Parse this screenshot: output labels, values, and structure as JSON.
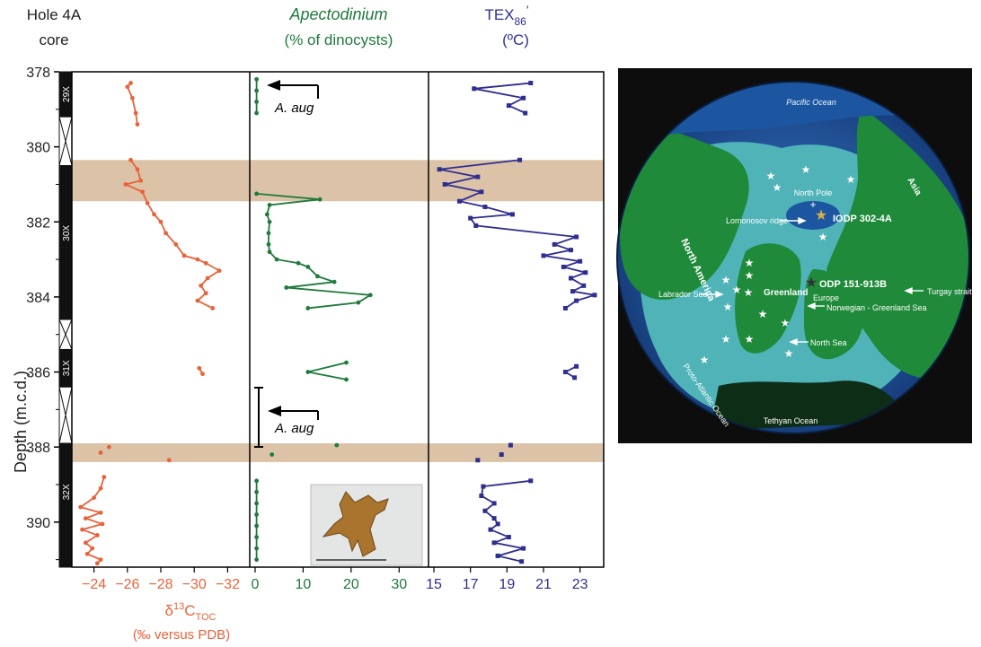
{
  "core_column": {
    "title_line1": "Hole 4A",
    "title_line2": "core",
    "sections": [
      "29X",
      "30X",
      "31X",
      "32X"
    ]
  },
  "depth_axis": {
    "label": "Depth (m.c.d.)",
    "ticks": [
      "378",
      "380",
      "382",
      "384",
      "386",
      "388",
      "390"
    ],
    "range": [
      378,
      391.2
    ],
    "inverted": true
  },
  "shaded_intervals": [
    [
      380.35,
      381.45
    ],
    [
      387.9,
      388.4
    ]
  ],
  "colors": {
    "d13c": "#e8623a",
    "apecto": "#1f7a3c",
    "tex": "#2e2e8f",
    "band": "#dcc3a8",
    "map_land": "#1f8a3a",
    "map_shelf": "#4fb3b8",
    "map_ocean": "#1c56a0"
  },
  "chart_data": [
    {
      "type": "line",
      "panel": "d13c",
      "xlabel_main": "δ",
      "xlabel_sup": "13",
      "xlabel_mid": "C",
      "xlabel_sub": "TOC",
      "xlabel_line2": "(‰ versus PDB)",
      "xlim": [
        -33,
        -23
      ],
      "x_reversed": true,
      "x_ticks": [
        "-32",
        "-30",
        "-28",
        "-26",
        "-24"
      ],
      "series": [
        {
          "points": [
            [
              -26.2,
              378.3
            ],
            [
              -26.0,
              378.4
            ],
            [
              -26.3,
              378.7
            ],
            [
              -26.5,
              379.1
            ],
            [
              -26.6,
              379.4
            ]
          ]
        },
        {
          "points": [
            [
              -26.2,
              380.35
            ],
            [
              -26.6,
              380.6
            ],
            [
              -26.8,
              380.9
            ],
            [
              -25.9,
              381.0
            ],
            [
              -26.9,
              381.2
            ],
            [
              -27.2,
              381.5
            ],
            [
              -27.6,
              381.8
            ],
            [
              -28.0,
              382.0
            ],
            [
              -28.3,
              382.3
            ],
            [
              -28.9,
              382.6
            ],
            [
              -29.4,
              382.9
            ],
            [
              -30.2,
              383.0
            ],
            [
              -30.7,
              383.1
            ],
            [
              -31.5,
              383.3
            ],
            [
              -30.8,
              383.5
            ],
            [
              -30.4,
              383.7
            ],
            [
              -30.7,
              383.9
            ],
            [
              -30.2,
              384.1
            ],
            [
              -31.1,
              384.3
            ]
          ]
        },
        {
          "points": [
            [
              -30.3,
              385.9
            ],
            [
              -30.5,
              386.05
            ]
          ]
        },
        {
          "points": [
            [
              -24.9,
              388.0
            ],
            [
              -24.4,
              388.15
            ],
            [
              -28.5,
              388.35
            ]
          ],
          "markers_only": true
        },
        {
          "points": [
            [
              -24.6,
              388.8
            ],
            [
              -24.4,
              389.1
            ],
            [
              -24.0,
              389.35
            ],
            [
              -23.2,
              389.6
            ],
            [
              -24.4,
              389.75
            ],
            [
              -23.5,
              389.9
            ],
            [
              -24.5,
              390.05
            ],
            [
              -23.3,
              390.2
            ],
            [
              -24.2,
              390.35
            ],
            [
              -23.5,
              390.55
            ],
            [
              -23.9,
              390.7
            ],
            [
              -23.6,
              390.85
            ],
            [
              -24.4,
              391.0
            ],
            [
              -24.2,
              391.1
            ]
          ]
        }
      ]
    },
    {
      "type": "line",
      "panel": "apectodinium",
      "xlabel_line1": "Apectodinium",
      "xlabel_line2": "(% of dinocysts)",
      "xlim": [
        0,
        35
      ],
      "x_ticks": [
        "0",
        "10",
        "20",
        "30"
      ],
      "annotation": "A. aug",
      "series": [
        {
          "points": [
            [
              0.3,
              378.2
            ],
            [
              0.3,
              378.5
            ],
            [
              0.3,
              378.8
            ],
            [
              0.3,
              379.1
            ]
          ]
        },
        {
          "points": [
            [
              0.3,
              381.25
            ],
            [
              13.5,
              381.4
            ],
            [
              3,
              381.55
            ],
            [
              2.5,
              381.8
            ],
            [
              3,
              382.0
            ],
            [
              2.8,
              382.3
            ],
            [
              2.8,
              382.6
            ],
            [
              3.0,
              382.8
            ],
            [
              4.5,
              383.0
            ],
            [
              9.0,
              383.1
            ],
            [
              11,
              383.2
            ],
            [
              13,
              383.45
            ],
            [
              16.5,
              383.6
            ],
            [
              6.5,
              383.75
            ],
            [
              24,
              383.95
            ],
            [
              21.5,
              384.15
            ],
            [
              11,
              384.3
            ]
          ]
        },
        {
          "points": [
            [
              19,
              385.75
            ],
            [
              11,
              386.0
            ],
            [
              19,
              386.2
            ]
          ]
        },
        {
          "points": [
            [
              3.5,
              388.2
            ],
            [
              17,
              387.95
            ]
          ],
          "markers_only": true
        },
        {
          "points": [
            [
              0.3,
              388.9
            ],
            [
              0.3,
              389.2
            ],
            [
              0.3,
              389.5
            ],
            [
              0.3,
              389.8
            ],
            [
              0.3,
              390.1
            ],
            [
              0.3,
              390.4
            ],
            [
              0.3,
              390.7
            ],
            [
              0.3,
              391.0
            ]
          ]
        }
      ]
    },
    {
      "type": "line",
      "panel": "tex86",
      "xlabel_main": "TEX",
      "xlabel_sub": "86",
      "xlabel_prime": "'",
      "xlabel_line2": "(ºC)",
      "xlim": [
        15,
        24
      ],
      "x_ticks": [
        "15",
        "17",
        "19",
        "21",
        "23"
      ],
      "series": [
        {
          "points": [
            [
              20.3,
              378.3
            ],
            [
              17.2,
              378.45
            ],
            [
              19.9,
              378.7
            ],
            [
              19.1,
              378.9
            ],
            [
              20.0,
              379.1
            ]
          ]
        },
        {
          "points": [
            [
              19.7,
              380.35
            ],
            [
              15.3,
              380.6
            ],
            [
              17.4,
              380.8
            ],
            [
              15.6,
              381.0
            ],
            [
              17.6,
              381.2
            ],
            [
              16.4,
              381.45
            ],
            [
              17.8,
              381.6
            ],
            [
              19.3,
              381.8
            ],
            [
              17.0,
              381.9
            ],
            [
              17.3,
              382.1
            ],
            [
              22.8,
              382.4
            ],
            [
              21.6,
              382.6
            ],
            [
              22.5,
              382.75
            ],
            [
              21.0,
              382.9
            ],
            [
              23.0,
              383.05
            ],
            [
              22.1,
              383.2
            ],
            [
              23.3,
              383.35
            ],
            [
              22.5,
              383.5
            ],
            [
              23.2,
              383.7
            ],
            [
              22.6,
              383.85
            ],
            [
              23.8,
              383.95
            ],
            [
              22.8,
              384.1
            ],
            [
              22.2,
              384.3
            ]
          ]
        },
        {
          "points": [
            [
              22.8,
              385.85
            ],
            [
              22.2,
              386.0
            ],
            [
              22.7,
              386.15
            ]
          ]
        },
        {
          "points": [
            [
              19.2,
              387.95
            ],
            [
              18.7,
              388.2
            ],
            [
              17.4,
              388.35
            ]
          ],
          "markers_only": true
        },
        {
          "points": [
            [
              20.3,
              388.9
            ],
            [
              17.7,
              389.05
            ],
            [
              17.6,
              389.3
            ],
            [
              18.3,
              389.5
            ],
            [
              17.8,
              389.7
            ],
            [
              18.3,
              389.9
            ],
            [
              18.5,
              390.05
            ],
            [
              18.1,
              390.2
            ],
            [
              19.1,
              390.4
            ],
            [
              18.3,
              390.55
            ],
            [
              19.9,
              390.7
            ],
            [
              18.5,
              390.9
            ],
            [
              19.8,
              391.05
            ]
          ]
        }
      ]
    }
  ],
  "map": {
    "labels": {
      "pacific": "Pacific Ocean",
      "north_pole": "North Pole",
      "asia": "Asia",
      "lomonosov": "Lomonosov ridge",
      "iodp": "IODP 302-4A",
      "north_america": "North America",
      "odp": "ODP 151-913B",
      "labrador": "Labrador Sea",
      "greenland": "Greenland",
      "europe": "Europe",
      "turgay": "Turgay strait",
      "norwegian": "Norwegian - Greenland Sea",
      "north_sea": "North Sea",
      "proto_atlantic": "Proto-Atlantic Ocean",
      "tethyan": "Tethyan Ocean"
    }
  }
}
